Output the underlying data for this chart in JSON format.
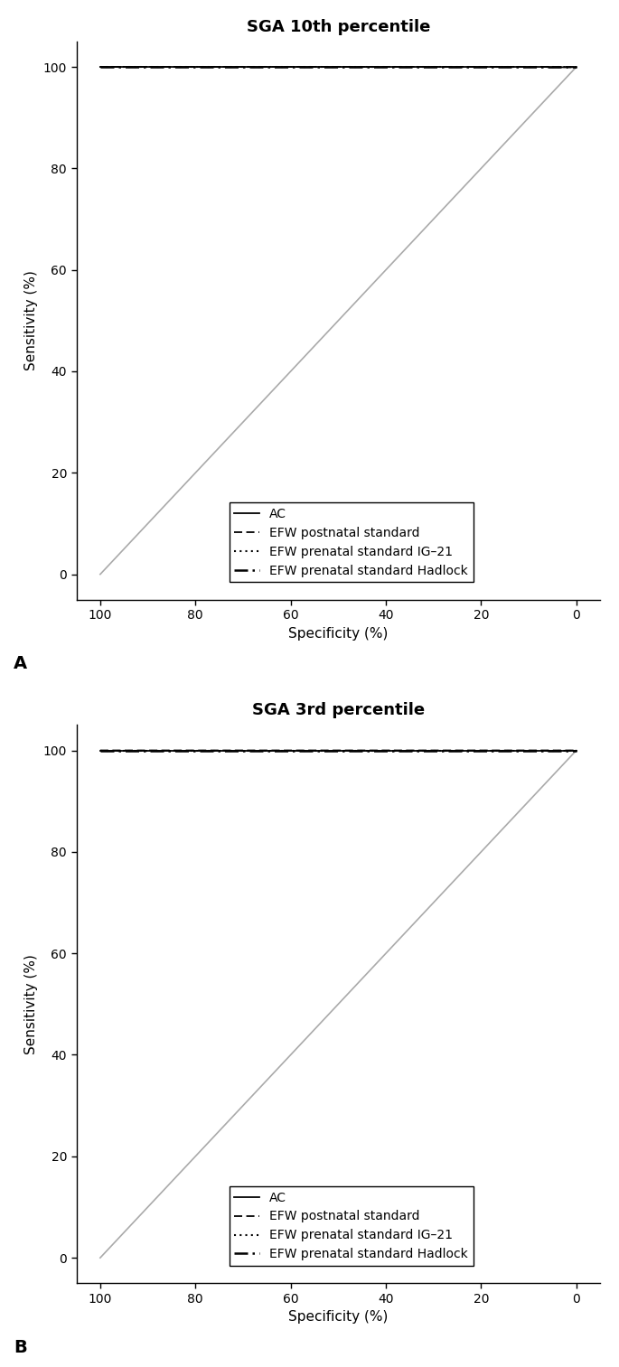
{
  "panel_A_title": "SGA 10th percentile",
  "panel_B_title": "SGA 3rd percentile",
  "xlabel": "Specificity (%)",
  "ylabel": "Sensitivity (%)",
  "xticks": [
    100,
    80,
    60,
    40,
    20,
    0
  ],
  "yticks": [
    0,
    20,
    40,
    60,
    80,
    100
  ],
  "xlim": [
    105,
    -5
  ],
  "ylim": [
    -5,
    105
  ],
  "legend_labels": [
    "AC",
    "EFW postnatal standard",
    "EFW prenatal standard IG–21",
    "EFW prenatal standard Hadlock"
  ],
  "line_styles": [
    {
      "linestyle": "-",
      "linewidth": 1.2,
      "color": "#000000",
      "dashes": null
    },
    {
      "linestyle": "--",
      "linewidth": 1.2,
      "color": "#000000",
      "dashes": [
        6,
        3
      ]
    },
    {
      "linestyle": ":",
      "linewidth": 1.2,
      "color": "#000000",
      "dashes": [
        1.5,
        2
      ]
    },
    {
      "linestyle": "-.",
      "linewidth": 1.8,
      "color": "#000000",
      "dashes": [
        7,
        2,
        1.5,
        2
      ]
    }
  ],
  "diagonal_color": "#aaaaaa",
  "background_color": "#ffffff",
  "panel_label_fontsize": 14,
  "title_fontsize": 13,
  "axis_fontsize": 11,
  "tick_fontsize": 10,
  "legend_fontsize": 10
}
